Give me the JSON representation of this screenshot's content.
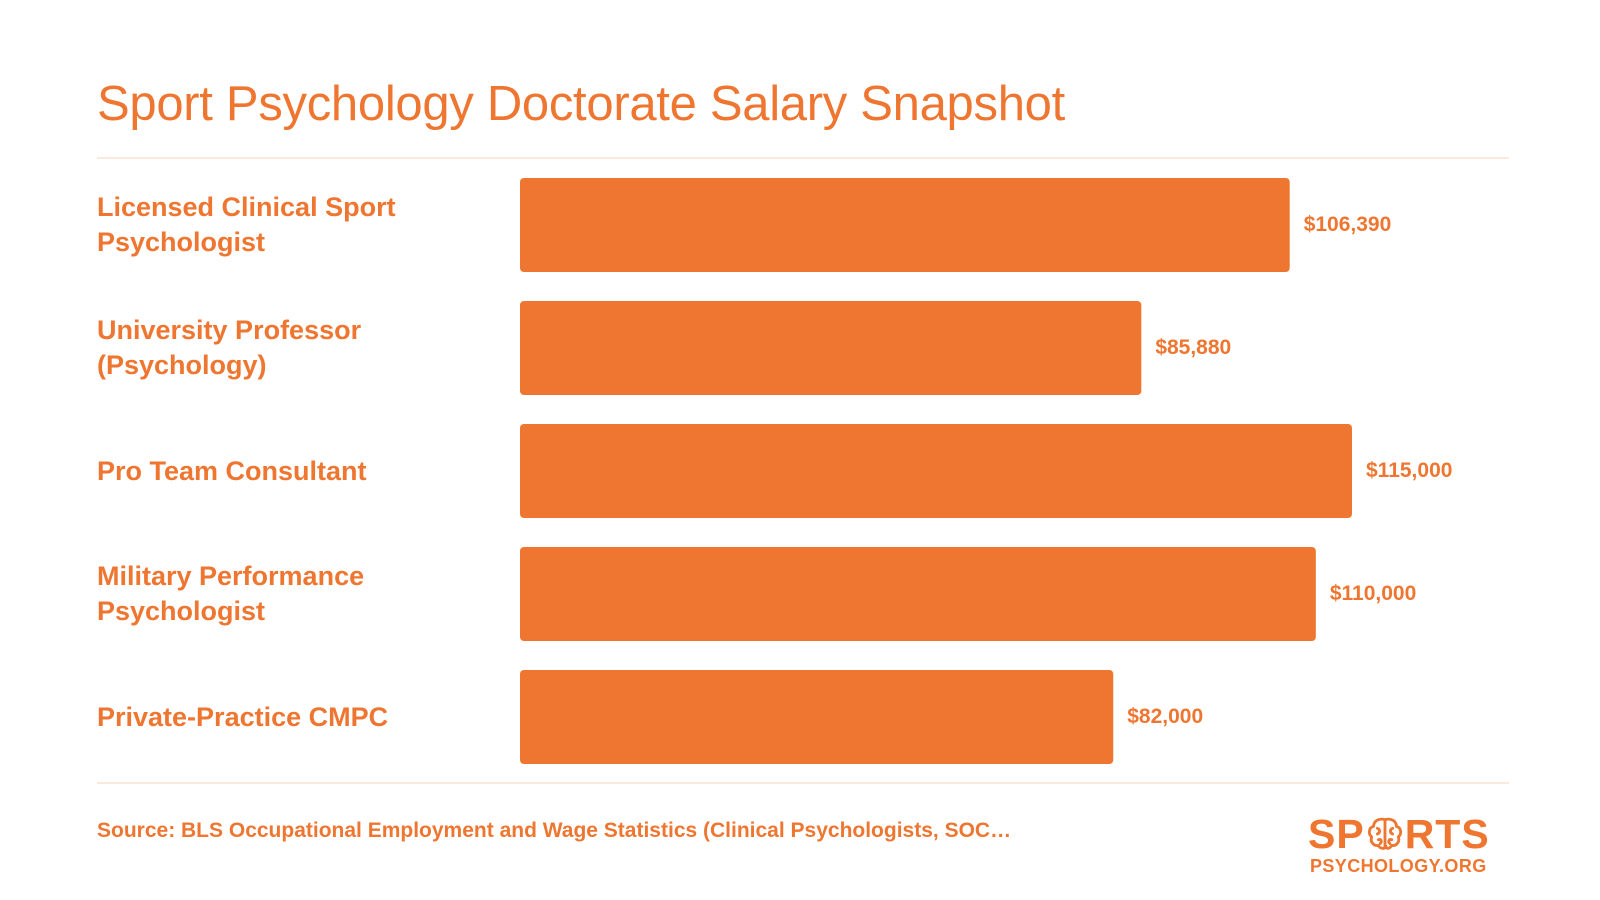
{
  "title": "Sport Psychology Doctorate Salary Snapshot",
  "source": "Source: BLS Occupational Employment and Wage Statistics (Clinical Psychologists, SOC…",
  "logo": {
    "part1": "SP",
    "part2": "RTS",
    "line2": "PSYCHOLOGY.ORG",
    "icon": "brain-icon"
  },
  "colors": {
    "accent": "#EF7630",
    "divider": "#FBE9DD"
  },
  "chart_data": {
    "type": "bar",
    "orientation": "horizontal",
    "title": "Sport Psychology Doctorate Salary Snapshot",
    "categories": [
      "Licensed Clinical Sport Psychologist",
      "University Professor (Psychology)",
      "Pro Team Consultant",
      "Military Performance Psychologist",
      "Private-Practice CMPC"
    ],
    "values": [
      106390,
      85880,
      115000,
      110000,
      82000
    ],
    "value_labels": [
      "$106,390",
      "$85,880",
      "$115,000",
      "$110,000",
      "$82,000"
    ],
    "xlim": [
      0,
      115000
    ],
    "grid": false,
    "legend": "none"
  }
}
